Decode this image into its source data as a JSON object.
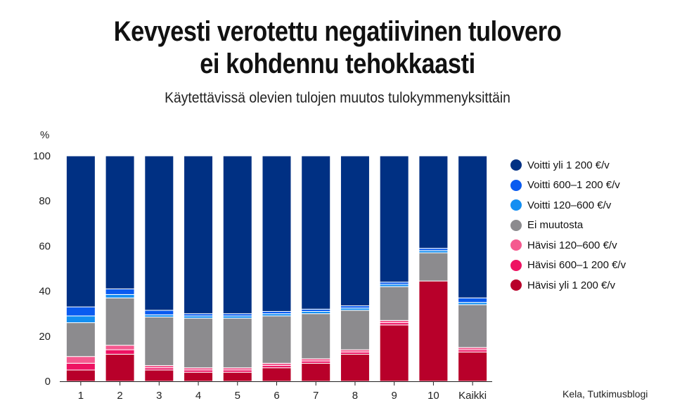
{
  "header": {
    "title_line1": "Kevyesti verotettu negatiivinen tulovero",
    "title_line2": "ei kohdennu tehokkaasti",
    "subtitle": "Käytettävissä olevien tulojen muutos tulokymmenyksittäin"
  },
  "source": "Kela, Tutkimusblogi",
  "chart_data": {
    "type": "bar",
    "stacked": true,
    "title": "Kevyesti verotettu negatiivinen tulovero ei kohdennu tehokkaasti",
    "subtitle": "Käytettävissä olevien tulojen muutos tulokymmenyksittäin",
    "xlabel": "",
    "ylabel": "%",
    "ylim": [
      0,
      100
    ],
    "yticks": [
      0,
      20,
      40,
      60,
      80,
      100
    ],
    "grid": false,
    "legend_position": "right",
    "categories": [
      "1",
      "2",
      "3",
      "4",
      "5",
      "6",
      "7",
      "8",
      "9",
      "10",
      "Kaikki"
    ],
    "series": [
      {
        "name": "Hävisi yli 1 200 €/v",
        "color": "#b8002a",
        "values": [
          5,
          12,
          5,
          4,
          4,
          6,
          8,
          12,
          25,
          44.5,
          13
        ]
      },
      {
        "name": "Hävisi 600–1 200 €/v",
        "color": "#ee1262",
        "values": [
          3,
          2,
          1,
          1,
          1,
          1,
          1,
          1,
          1,
          0,
          1
        ]
      },
      {
        "name": "Hävisi 120–600 €/v",
        "color": "#f5598f",
        "values": [
          3,
          2,
          1,
          1,
          1,
          1,
          1,
          1,
          1,
          0,
          1
        ]
      },
      {
        "name": "Ei muutosta",
        "color": "#8c8b8e",
        "values": [
          15,
          21,
          21.5,
          22,
          22,
          21,
          20,
          17.5,
          15,
          12.5,
          19
        ]
      },
      {
        "name": "Voitti 120–600 €/v",
        "color": "#138ff2",
        "values": [
          3,
          1.5,
          1,
          1,
          1,
          1,
          1,
          1,
          1,
          1,
          1
        ]
      },
      {
        "name": "Voitti 600–1 200 €/v",
        "color": "#0a5bf0",
        "values": [
          4,
          2.5,
          2,
          1,
          1,
          1,
          1,
          1,
          1,
          1,
          2
        ]
      },
      {
        "name": "Voitti yli 1 200 €/v",
        "color": "#003083",
        "values": [
          67,
          59,
          68.5,
          70,
          70,
          69,
          68,
          66.5,
          56,
          41,
          63
        ]
      }
    ]
  }
}
